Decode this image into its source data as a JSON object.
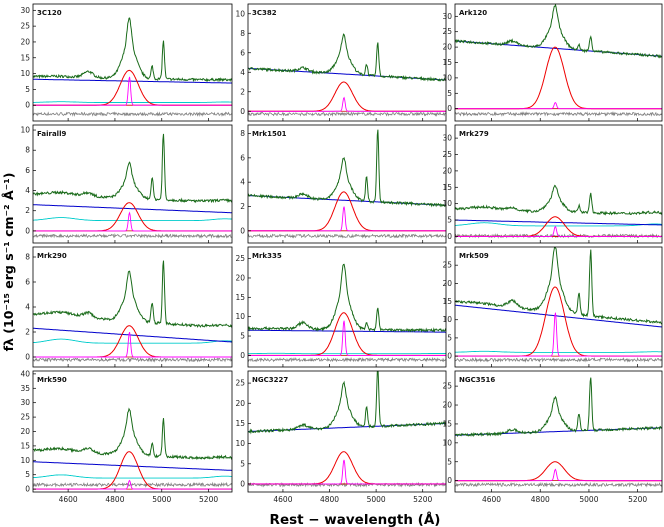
{
  "chart_data": {
    "type": "line",
    "xlabel": "Rest − wavelength (Å)",
    "ylabel": "fλ (10⁻¹⁵ erg s⁻¹ cm⁻² Å⁻¹)",
    "xlim": [
      4450,
      5300
    ],
    "x_ticks": [
      "4600",
      "4800",
      "5000",
      "5200"
    ],
    "series_legend": {
      "total": "#1a6b1a",
      "continuum": "#0000cc",
      "fe_ii": "#00cccc",
      "h_beta_broad": "#ee0000",
      "h_beta_narrow": "#ff00ff",
      "host": "#660066",
      "residual": "#808080"
    },
    "panels": [
      {
        "name": "3C120",
        "ylim": [
          -5,
          32
        ],
        "ticks": [
          "0",
          "5",
          "10",
          "15",
          "20",
          "25",
          "30"
        ],
        "cont": [
          8.2,
          7.0
        ],
        "feii": 1.0,
        "broad": 11,
        "narrow": 9,
        "peakA": 19,
        "oiiiA": 12
      },
      {
        "name": "3C382",
        "ylim": [
          -1,
          11
        ],
        "ticks": [
          "0",
          "2",
          "4",
          "6",
          "8",
          "10"
        ],
        "cont": [
          4.4,
          3.2
        ],
        "feii": 0,
        "broad": 3.0,
        "narrow": 1.4,
        "peakA": 4.0,
        "oiiiA": 3.5
      },
      {
        "name": "Ark120",
        "ylim": [
          -4,
          34
        ],
        "ticks": [
          "0",
          "5",
          "10",
          "15",
          "20",
          "25",
          "30"
        ],
        "cont": [
          22,
          17
        ],
        "feii": 0,
        "broad": 20,
        "narrow": 2,
        "peakA": 14,
        "oiiiA": 5
      },
      {
        "name": "Fairall9",
        "ylim": [
          -1.2,
          10.5
        ],
        "ticks": [
          "0",
          "2",
          "4",
          "6",
          "8",
          "10"
        ],
        "cont": [
          2.6,
          1.8
        ],
        "feii": 1.2,
        "broad": 2.8,
        "narrow": 1.8,
        "peakA": 3.5,
        "oiiiA": 6.5
      },
      {
        "name": "Mrk1501",
        "ylim": [
          -1,
          8.7
        ],
        "ticks": [
          "0",
          "2",
          "4",
          "6",
          "8"
        ],
        "cont": [
          2.9,
          2.1
        ],
        "feii": 0,
        "broad": 3.2,
        "narrow": 2.0,
        "peakA": 3.5,
        "oiiiA": 6.0
      },
      {
        "name": "Mrk279",
        "ylim": [
          -2,
          34
        ],
        "ticks": [
          "0",
          "5",
          "10",
          "15",
          "20",
          "25",
          "30"
        ],
        "cont": [
          5.0,
          3.5
        ],
        "feii": 3.8,
        "broad": 6,
        "narrow": 3,
        "peakA": 8,
        "oiiiA": 6
      },
      {
        "name": "Mrk290",
        "ylim": [
          -0.8,
          8.8
        ],
        "ticks": [
          "0",
          "2",
          "4",
          "6",
          "8"
        ],
        "cont": [
          2.3,
          1.2
        ],
        "feii": 1.3,
        "broad": 2.5,
        "narrow": 2.0,
        "peakA": 4.0,
        "oiiiA": 5.0
      },
      {
        "name": "Mrk335",
        "ylim": [
          -3,
          28
        ],
        "ticks": [
          "0",
          "5",
          "10",
          "15",
          "20",
          "25"
        ],
        "cont": [
          6.5,
          6.0
        ],
        "feii": 0.5,
        "broad": 11,
        "narrow": 9,
        "peakA": 17,
        "oiiiA": 6
      },
      {
        "name": "Mrk509",
        "ylim": [
          -3,
          30
        ],
        "ticks": [
          "0",
          "5",
          "10",
          "15",
          "20",
          "25"
        ],
        "cont": [
          14,
          8
        ],
        "feii": 1.2,
        "broad": 19,
        "narrow": 12,
        "peakA": 18,
        "oiiiA": 18
      },
      {
        "name": "Mrk590",
        "ylim": [
          -1,
          41
        ],
        "ticks": [
          "0",
          "5",
          "10",
          "15",
          "20",
          "25",
          "30",
          "35",
          "40"
        ],
        "cont": [
          9.5,
          6.5
        ],
        "feii": 4.5,
        "broad": 13,
        "narrow": 3,
        "peakA": 16,
        "oiiiA": 13
      },
      {
        "name": "NGC3227",
        "ylim": [
          -2,
          28
        ],
        "ticks": [
          "0",
          "5",
          "10",
          "15",
          "20",
          "25"
        ],
        "cont": [
          13.0,
          15.0
        ],
        "feii": 0,
        "broad": 8,
        "narrow": 6,
        "peakA": 11,
        "oiiiA": 15
      },
      {
        "name": "NGC3516",
        "ylim": [
          -3,
          29
        ],
        "ticks": [
          "0",
          "5",
          "10",
          "15",
          "20",
          "25"
        ],
        "cont": [
          12.0,
          14.0
        ],
        "feii": 0,
        "broad": 5,
        "narrow": 3,
        "peakA": 9,
        "oiiiA": 14
      }
    ]
  }
}
